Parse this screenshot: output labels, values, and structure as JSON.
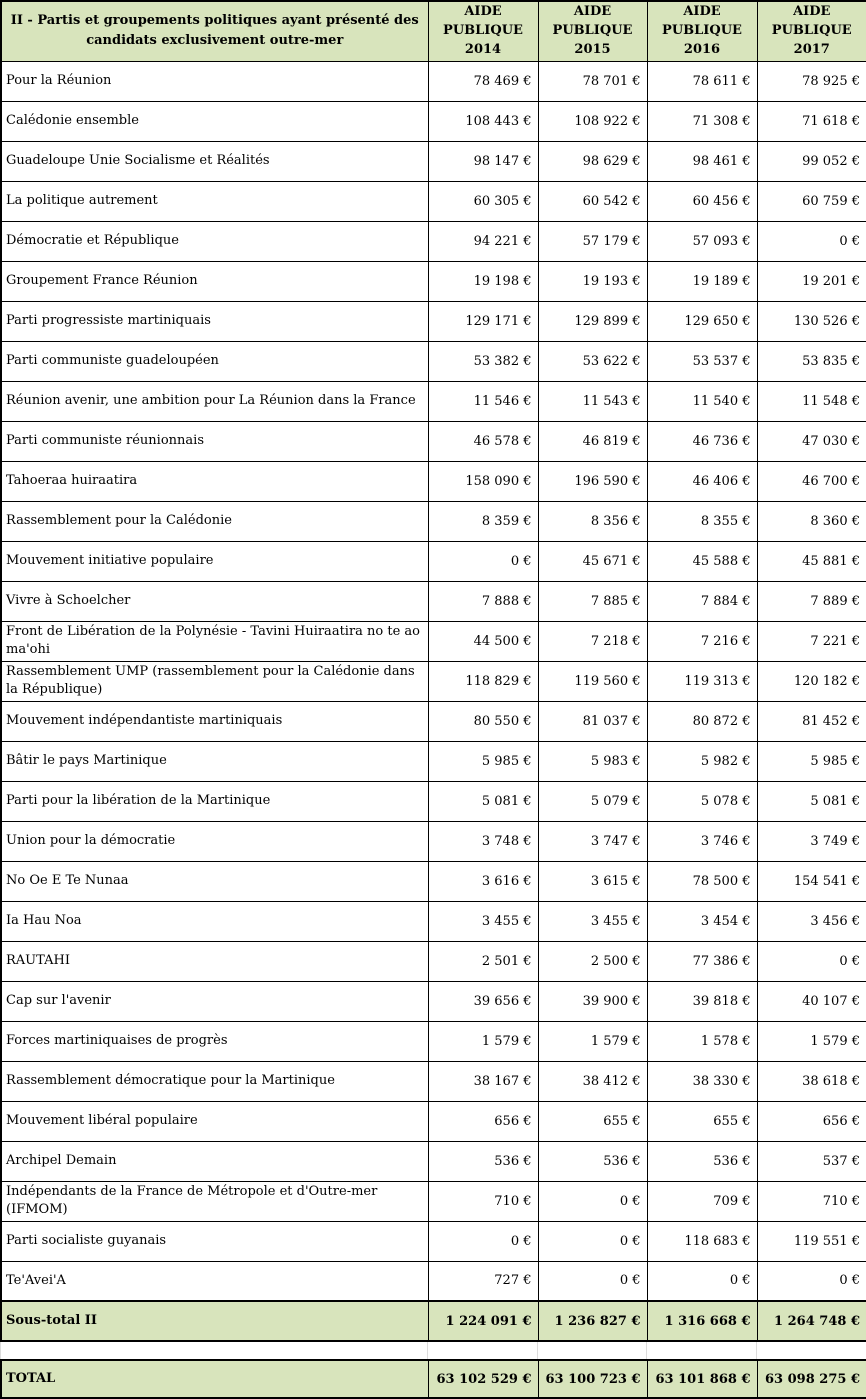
{
  "table": {
    "title": "II - Partis et groupements politiques ayant présenté des candidats exclusivement outre-mer",
    "columns": [
      {
        "line1": "AIDE",
        "line2": "PUBLIQUE 2014"
      },
      {
        "line1": "AIDE",
        "line2": "PUBLIQUE 2015"
      },
      {
        "line1": "AIDE",
        "line2": "PUBLIQUE 2016"
      },
      {
        "line1": "AIDE",
        "line2": "PUBLIQUE 2017"
      }
    ],
    "rows": [
      {
        "name": "Pour la Réunion",
        "values": [
          "78 469 €",
          "78 701 €",
          "78 611 €",
          "78 925 €"
        ]
      },
      {
        "name": "Calédonie ensemble",
        "values": [
          "108 443 €",
          "108 922 €",
          "71 308 €",
          "71 618 €"
        ]
      },
      {
        "name": "Guadeloupe Unie Socialisme et Réalités",
        "values": [
          "98 147 €",
          "98 629 €",
          "98 461 €",
          "99 052 €"
        ]
      },
      {
        "name": "La politique autrement",
        "values": [
          "60 305 €",
          "60 542 €",
          "60 456 €",
          "60 759 €"
        ]
      },
      {
        "name": "Démocratie et République",
        "values": [
          "94 221 €",
          "57 179 €",
          "57 093 €",
          "0 €"
        ]
      },
      {
        "name": "Groupement France Réunion",
        "values": [
          "19 198 €",
          "19 193 €",
          "19 189 €",
          "19 201 €"
        ]
      },
      {
        "name": "Parti progressiste martiniquais",
        "values": [
          "129 171 €",
          "129 899 €",
          "129 650 €",
          "130 526 €"
        ]
      },
      {
        "name": "Parti communiste guadeloupéen",
        "values": [
          "53 382 €",
          "53 622 €",
          "53 537 €",
          "53 835 €"
        ]
      },
      {
        "name": "Réunion avenir, une ambition pour La Réunion dans la France",
        "values": [
          "11 546 €",
          "11 543 €",
          "11 540 €",
          "11 548 €"
        ]
      },
      {
        "name": "Parti communiste réunionnais",
        "values": [
          "46 578 €",
          "46 819 €",
          "46 736 €",
          "47 030 €"
        ]
      },
      {
        "name": "Tahoeraa huiraatira",
        "values": [
          "158 090 €",
          "196 590 €",
          "46 406 €",
          "46 700 €"
        ]
      },
      {
        "name": "Rassemblement pour la Calédonie",
        "values": [
          "8 359 €",
          "8 356 €",
          "8 355 €",
          "8 360 €"
        ]
      },
      {
        "name": "Mouvement initiative populaire",
        "values": [
          "0 €",
          "45 671 €",
          "45 588 €",
          "45 881 €"
        ]
      },
      {
        "name": "Vivre à Schoelcher",
        "values": [
          "7 888 €",
          "7 885 €",
          "7 884 €",
          "7 889 €"
        ]
      },
      {
        "name": "Front de Libération de la Polynésie - Tavini Huiraatira no te ao ma'ohi",
        "values": [
          "44 500 €",
          "7 218 €",
          "7 216 €",
          "7 221 €"
        ]
      },
      {
        "name": "Rassemblement UMP (rassemblement pour la Calédonie dans la République)",
        "values": [
          "118 829 €",
          "119 560 €",
          "119 313 €",
          "120 182 €"
        ]
      },
      {
        "name": "Mouvement indépendantiste martiniquais",
        "values": [
          "80 550 €",
          "81 037 €",
          "80 872 €",
          "81 452 €"
        ]
      },
      {
        "name": "Bâtir le pays Martinique",
        "values": [
          "5 985 €",
          "5 983 €",
          "5 982 €",
          "5 985 €"
        ]
      },
      {
        "name": "Parti pour la libération de la Martinique",
        "values": [
          "5 081 €",
          "5 079 €",
          "5 078 €",
          "5 081 €"
        ]
      },
      {
        "name": "Union pour la démocratie",
        "values": [
          "3 748 €",
          "3 747 €",
          "3 746 €",
          "3 749 €"
        ]
      },
      {
        "name": "No Oe E Te Nunaa",
        "values": [
          "3 616 €",
          "3 615 €",
          "78 500 €",
          "154 541 €"
        ]
      },
      {
        "name": "Ia Hau Noa",
        "values": [
          "3 455 €",
          "3 455 €",
          "3 454 €",
          "3 456 €"
        ]
      },
      {
        "name": "RAUTAHI",
        "values": [
          "2 501 €",
          "2 500 €",
          "77 386 €",
          "0 €"
        ]
      },
      {
        "name": "Cap sur l'avenir",
        "values": [
          "39 656 €",
          "39 900 €",
          "39 818 €",
          "40 107 €"
        ]
      },
      {
        "name": "Forces martiniquaises de progrès",
        "values": [
          "1 579 €",
          "1 579 €",
          "1 578 €",
          "1 579 €"
        ]
      },
      {
        "name": "Rassemblement démocratique pour la Martinique",
        "values": [
          "38 167 €",
          "38 412 €",
          "38 330 €",
          "38 618 €"
        ]
      },
      {
        "name": "Mouvement libéral populaire",
        "values": [
          "656 €",
          "655 €",
          "655 €",
          "656 €"
        ]
      },
      {
        "name": "Archipel Demain",
        "values": [
          "536 €",
          "536 €",
          "536 €",
          "537 €"
        ]
      },
      {
        "name": "Indépendants de la France de Métropole et d'Outre-mer (IFMOM)",
        "values": [
          "710 €",
          "0 €",
          "709 €",
          "710 €"
        ]
      },
      {
        "name": "Parti socialiste guyanais",
        "values": [
          "0 €",
          "0 €",
          "118 683 €",
          "119 551 €"
        ]
      },
      {
        "name": "Te'Avei'A",
        "values": [
          "727 €",
          "0 €",
          "0 €",
          "0 €"
        ]
      }
    ],
    "subtotal": {
      "label": "Sous-total II",
      "values": [
        "1 224 091 €",
        "1 236 827 €",
        "1 316 668 €",
        "1 264 748 €"
      ]
    },
    "total": {
      "label": "TOTAL",
      "values": [
        "63 102 529 €",
        "63 100 723 €",
        "63 101 868 €",
        "63 098 275 €"
      ]
    }
  },
  "colors": {
    "header_bg": "#d8e4bc",
    "row_bg": "#ffffff",
    "border": "#000000",
    "text": "#000000"
  }
}
